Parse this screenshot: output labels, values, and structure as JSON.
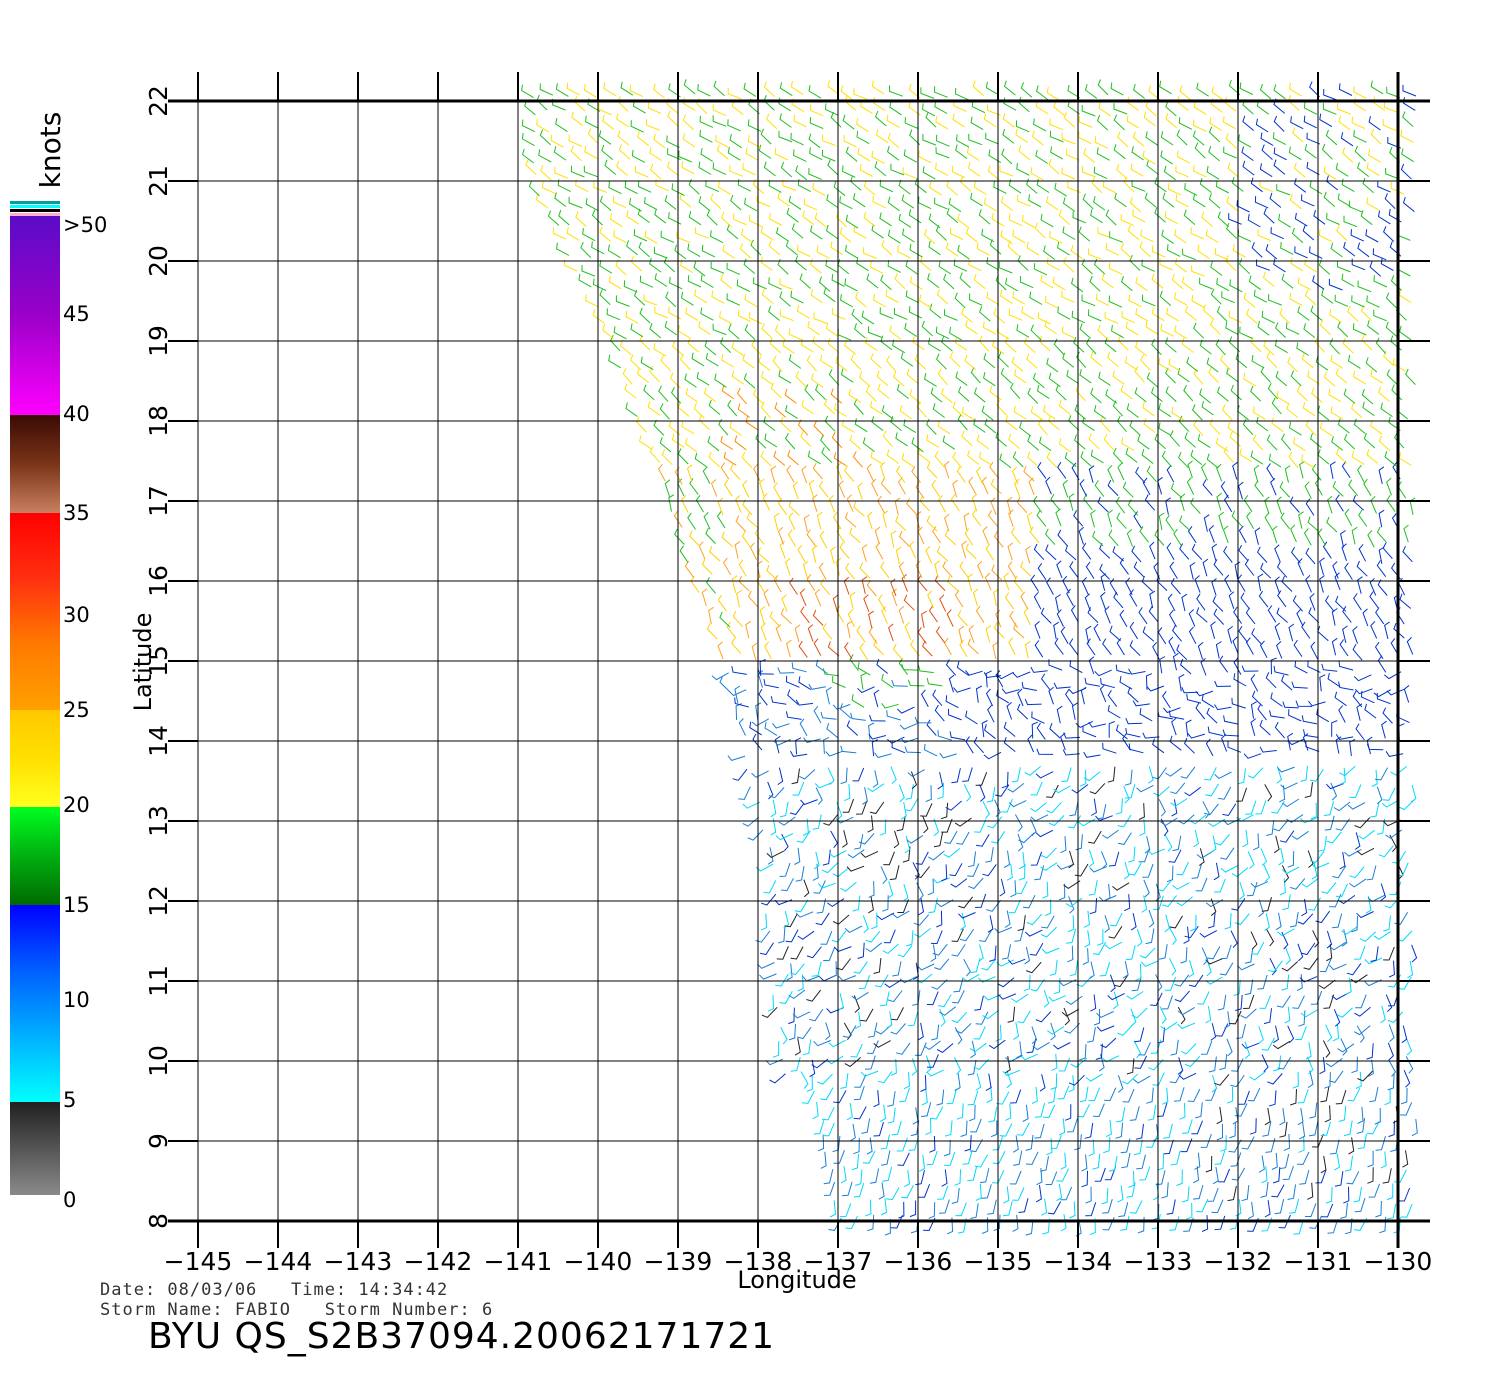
{
  "chart_data": {
    "type": "scatter",
    "description_type": "wind barb map",
    "xlabel": "Longitude",
    "ylabel": "Latitude",
    "xlim": [
      -145,
      -130
    ],
    "ylim": [
      8,
      22
    ],
    "x_ticks": [
      "−145",
      "−144",
      "−143",
      "−142",
      "−141",
      "−140",
      "−139",
      "−138",
      "−137",
      "−136",
      "−135",
      "−134",
      "−133",
      "−132",
      "−131",
      "−130"
    ],
    "y_ticks": [
      "8",
      "9",
      "10",
      "11",
      "12",
      "13",
      "14",
      "15",
      "16",
      "17",
      "18",
      "19",
      "20",
      "21",
      "22"
    ],
    "grid": true,
    "colorbar": {
      "unit": "knots",
      "labels": [
        ">50",
        "45",
        "40",
        "35",
        "30",
        "25",
        "20",
        "15",
        "10",
        "5",
        "0"
      ]
    },
    "wind_regions": [
      {
        "area": "north (lat 19-22)",
        "speed_knots": "15-25",
        "colors": [
          "#ffe000",
          "#1fbf1f"
        ]
      },
      {
        "area": "center (lat 15-19, lon -139 to -135)",
        "speed_knots": "20-30",
        "colors": [
          "#ffd000",
          "#ff8c00"
        ]
      },
      {
        "area": "east (lat 14-18, lon -134 to -130)",
        "speed_knots": "10-20",
        "colors": [
          "#0033cc",
          "#1fbf1f"
        ]
      },
      {
        "area": "south (lat 8-14)",
        "speed_knots": "0-12",
        "colors": [
          "#00d8ff",
          "#1a7fd6",
          "#0033cc",
          "#222222"
        ]
      }
    ]
  },
  "info": {
    "line1": "Date: 08/03/06   Time: 14:34:42",
    "line2": "Storm Name: FABIO   Storm Number: 6"
  },
  "title": "BYU QS_S2B37094.20062171721"
}
